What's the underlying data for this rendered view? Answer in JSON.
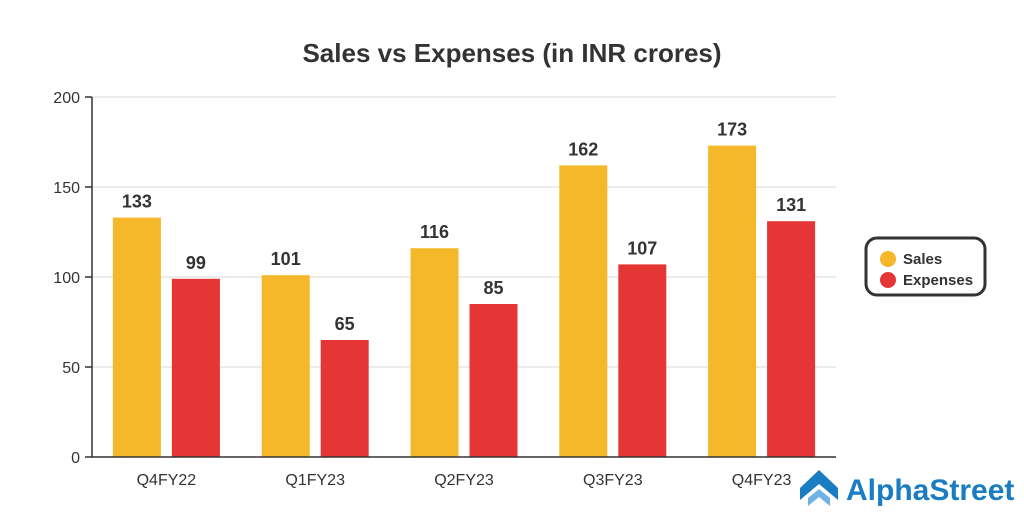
{
  "chart_data": {
    "type": "bar",
    "title": "Sales vs Expenses (in INR crores)",
    "xlabel": "",
    "ylabel": "",
    "ylim": [
      0,
      200
    ],
    "yticks": [
      0,
      50,
      100,
      150,
      200
    ],
    "grid": true,
    "categories": [
      "Q4FY22",
      "Q1FY23",
      "Q2FY23",
      "Q3FY23",
      "Q4FY23"
    ],
    "series": [
      {
        "name": "Sales",
        "color": "#f6b82b",
        "values": [
          133,
          101,
          116,
          162,
          173
        ]
      },
      {
        "name": "Expenses",
        "color": "#e53535",
        "values": [
          99,
          65,
          85,
          107,
          131
        ]
      }
    ],
    "legend_position": "right"
  },
  "brand": {
    "name": "AlphaStreet",
    "color": "#1a7cc1"
  }
}
